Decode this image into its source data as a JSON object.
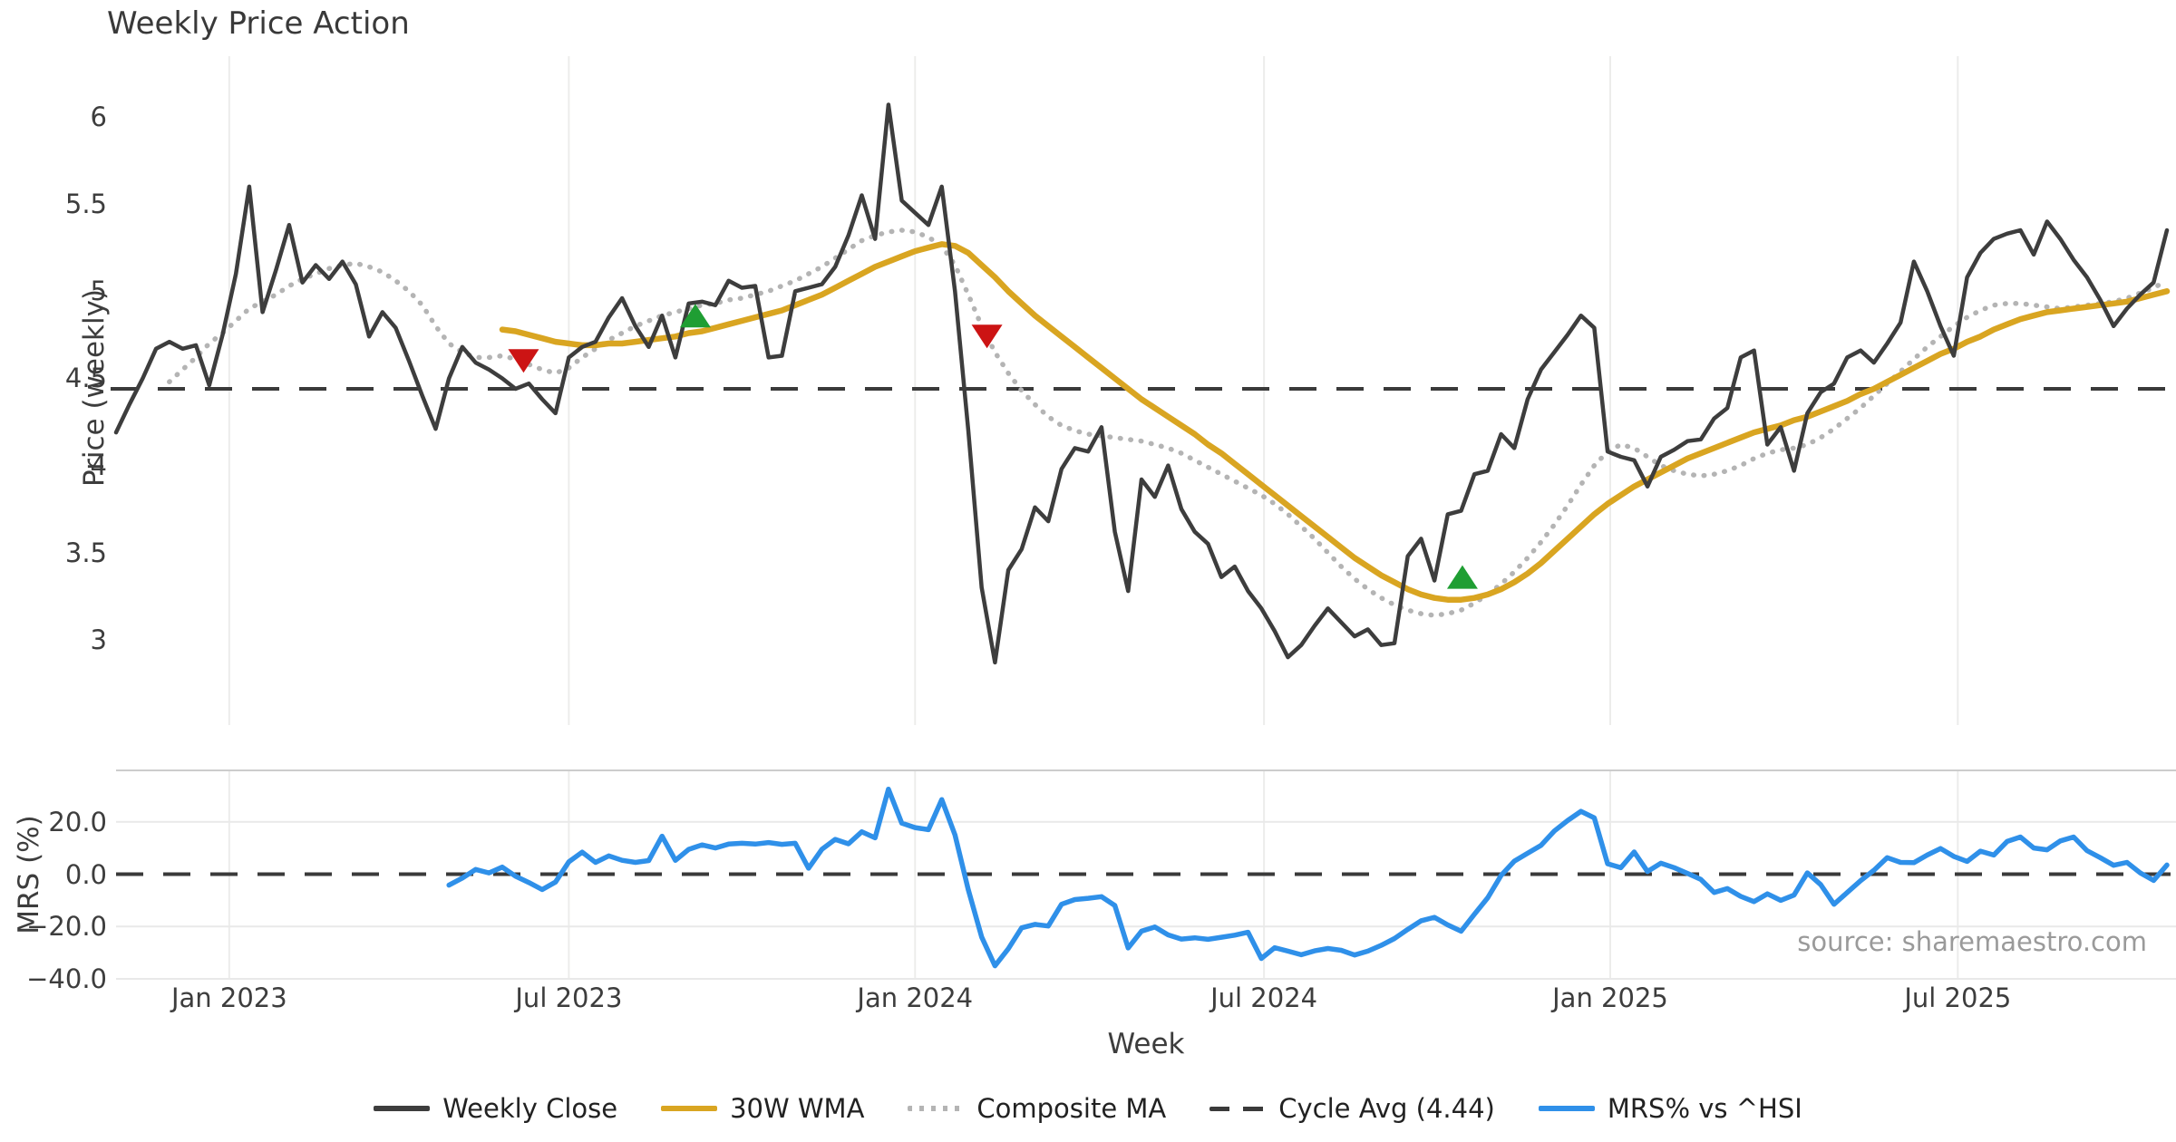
{
  "title": "Weekly Price Action",
  "source_text": "source: sharemaestro.com",
  "axes": {
    "price_axis_label": "Price (weekly)",
    "mrs_axis_label": "MRS (%)",
    "x_axis_label": "Week",
    "price_ticks": [
      {
        "label": "6",
        "value": 6
      },
      {
        "label": "5.5",
        "value": 5.5
      },
      {
        "label": "5",
        "value": 5
      },
      {
        "label": "4.5",
        "value": 4.5
      },
      {
        "label": "4",
        "value": 4
      },
      {
        "label": "3.5",
        "value": 3.5
      },
      {
        "label": "3",
        "value": 3
      }
    ],
    "mrs_ticks": [
      {
        "label": "20.0",
        "value": 20
      },
      {
        "label": "0.0",
        "value": 0
      },
      {
        "label": "−20.0",
        "value": -20
      },
      {
        "label": "−40.0",
        "value": -40
      }
    ],
    "x_ticks": [
      {
        "label": "Jan 2023",
        "week": 8.5
      },
      {
        "label": "Jul 2023",
        "week": 34.0
      },
      {
        "label": "Jan 2024",
        "week": 60.0
      },
      {
        "label": "Jul 2024",
        "week": 86.2
      },
      {
        "label": "Jan 2025",
        "week": 112.2
      },
      {
        "label": "Jul 2025",
        "week": 138.3
      }
    ]
  },
  "legend": [
    {
      "label": "Weekly Close",
      "style": "solid",
      "color": "#3d3d3d"
    },
    {
      "label": "30W WMA",
      "style": "solid",
      "color": "#d9a521"
    },
    {
      "label": "Composite MA",
      "style": "dotted",
      "color": "#b4b4b4"
    },
    {
      "label": "Cycle Avg (4.44)",
      "style": "dashed",
      "color": "#3a3a3a"
    },
    {
      "label": "MRS% vs ^HSI",
      "style": "solid",
      "color": "#2f90e9"
    }
  ],
  "colors": {
    "close": "#3d3d3d",
    "wma30": "#d9a521",
    "composite": "#b4b4b4",
    "cycle": "#3a3a3a",
    "mrs": "#2f90e9",
    "buy": "#1f9e33",
    "sell": "#cc1414",
    "grid": "#ececeb",
    "border": "#cccccc"
  },
  "chart_data": {
    "type": "line",
    "x_unit": "week_index",
    "n_weeks": 155,
    "panels": [
      {
        "name": "price",
        "ylabel": "Price (weekly)",
        "ylim": [
          2.5,
          6.35
        ],
        "grid": "vertical"
      },
      {
        "name": "mrs",
        "ylabel": "MRS (%)",
        "ylim": [
          -40,
          40
        ],
        "grid": "horizontal"
      }
    ],
    "cycle_avg": 4.44,
    "series": {
      "weekly_close": [
        4.19,
        4.35,
        4.5,
        4.67,
        4.71,
        4.67,
        4.69,
        4.46,
        4.75,
        5.1,
        5.6,
        4.88,
        5.12,
        5.38,
        5.05,
        5.15,
        5.07,
        5.17,
        5.04,
        4.74,
        4.88,
        4.79,
        4.6,
        4.4,
        4.21,
        4.5,
        4.68,
        4.59,
        4.55,
        4.5,
        4.44,
        4.47,
        4.38,
        4.3,
        4.62,
        4.68,
        4.71,
        4.85,
        4.96,
        4.8,
        4.68,
        4.86,
        4.62,
        4.93,
        4.94,
        4.92,
        5.06,
        5.02,
        5.03,
        4.62,
        4.63,
        5.0,
        5.02,
        5.04,
        5.14,
        5.32,
        5.55,
        5.3,
        6.07,
        5.52,
        5.45,
        5.38,
        5.6,
        5.0,
        4.2,
        3.3,
        2.87,
        3.4,
        3.52,
        3.76,
        3.68,
        3.98,
        4.1,
        4.08,
        4.22,
        3.62,
        3.28,
        3.92,
        3.82,
        4.0,
        3.75,
        3.62,
        3.55,
        3.36,
        3.42,
        3.28,
        3.18,
        3.05,
        2.9,
        2.97,
        3.08,
        3.18,
        3.1,
        3.02,
        3.06,
        2.97,
        2.98,
        3.48,
        3.58,
        3.34,
        3.72,
        3.74,
        3.95,
        3.97,
        4.18,
        4.1,
        4.38,
        4.55,
        4.65,
        4.75,
        4.86,
        4.79,
        4.08,
        4.05,
        4.03,
        3.88,
        4.05,
        4.09,
        4.14,
        4.15,
        4.27,
        4.33,
        4.62,
        4.66,
        4.12,
        4.22,
        3.97,
        4.3,
        4.42,
        4.47,
        4.62,
        4.66,
        4.59,
        4.7,
        4.82,
        5.17,
        5.0,
        4.8,
        4.63,
        5.08,
        5.22,
        5.3,
        5.33,
        5.35,
        5.21,
        5.4,
        5.3,
        5.18,
        5.08,
        4.95,
        4.8,
        4.9,
        4.98,
        5.05,
        5.35
      ],
      "wma_30w": [
        null,
        null,
        null,
        null,
        null,
        null,
        null,
        null,
        null,
        null,
        null,
        null,
        null,
        null,
        null,
        null,
        null,
        null,
        null,
        null,
        null,
        null,
        null,
        null,
        null,
        null,
        null,
        null,
        null,
        4.78,
        4.77,
        4.75,
        4.73,
        4.71,
        4.7,
        4.69,
        4.69,
        4.7,
        4.7,
        4.71,
        4.72,
        4.73,
        4.74,
        4.76,
        4.77,
        4.79,
        4.81,
        4.83,
        4.85,
        4.87,
        4.89,
        4.92,
        4.95,
        4.98,
        5.02,
        5.06,
        5.1,
        5.14,
        5.17,
        5.2,
        5.23,
        5.25,
        5.27,
        5.26,
        5.22,
        5.15,
        5.08,
        5.0,
        4.93,
        4.86,
        4.8,
        4.74,
        4.68,
        4.62,
        4.56,
        4.5,
        4.44,
        4.38,
        4.33,
        4.28,
        4.23,
        4.18,
        4.12,
        4.07,
        4.01,
        3.95,
        3.89,
        3.83,
        3.77,
        3.71,
        3.65,
        3.59,
        3.53,
        3.47,
        3.42,
        3.37,
        3.33,
        3.29,
        3.26,
        3.24,
        3.23,
        3.23,
        3.24,
        3.26,
        3.29,
        3.33,
        3.38,
        3.44,
        3.51,
        3.58,
        3.65,
        3.72,
        3.78,
        3.83,
        3.88,
        3.92,
        3.96,
        4.0,
        4.04,
        4.07,
        4.1,
        4.13,
        4.16,
        4.19,
        4.21,
        4.23,
        4.26,
        4.28,
        4.31,
        4.34,
        4.37,
        4.41,
        4.44,
        4.48,
        4.52,
        4.56,
        4.6,
        4.64,
        4.67,
        4.71,
        4.74,
        4.78,
        4.81,
        4.84,
        4.86,
        4.88,
        4.89,
        4.9,
        4.91,
        4.92,
        4.93,
        4.94,
        4.96,
        4.98,
        5.0
      ],
      "composite_ma": [
        null,
        null,
        null,
        null,
        4.48,
        4.55,
        4.62,
        4.7,
        4.76,
        4.83,
        4.9,
        4.94,
        4.98,
        5.03,
        5.07,
        5.1,
        5.13,
        5.15,
        5.16,
        5.14,
        5.11,
        5.06,
        5.0,
        4.92,
        4.8,
        4.7,
        4.65,
        4.62,
        4.62,
        4.63,
        4.61,
        4.58,
        4.55,
        4.53,
        4.56,
        4.62,
        4.67,
        4.72,
        4.76,
        4.8,
        4.83,
        4.86,
        4.88,
        4.9,
        4.92,
        4.93,
        4.95,
        4.96,
        4.98,
        5.0,
        5.03,
        5.06,
        5.1,
        5.14,
        5.19,
        5.24,
        5.29,
        5.32,
        5.34,
        5.35,
        5.34,
        5.31,
        5.26,
        5.15,
        4.98,
        4.8,
        4.65,
        4.53,
        4.43,
        4.35,
        4.28,
        4.23,
        4.2,
        4.18,
        4.17,
        4.16,
        4.15,
        4.14,
        4.12,
        4.1,
        4.07,
        4.03,
        3.99,
        3.95,
        3.91,
        3.87,
        3.83,
        3.78,
        3.72,
        3.65,
        3.58,
        3.5,
        3.42,
        3.35,
        3.29,
        3.24,
        3.2,
        3.17,
        3.15,
        3.14,
        3.15,
        3.17,
        3.21,
        3.26,
        3.32,
        3.39,
        3.47,
        3.56,
        3.66,
        3.77,
        3.89,
        4.0,
        4.08,
        4.12,
        4.1,
        4.05,
        4.0,
        3.97,
        3.95,
        3.94,
        3.95,
        3.97,
        4.0,
        4.04,
        4.07,
        4.09,
        4.1,
        4.12,
        4.16,
        4.21,
        4.27,
        4.33,
        4.4,
        4.47,
        4.54,
        4.61,
        4.68,
        4.74,
        4.8,
        4.85,
        4.89,
        4.92,
        4.93,
        4.93,
        4.92,
        4.91,
        4.9,
        4.91,
        4.92,
        4.93,
        4.94,
        4.96,
        4.99,
        5.02,
        5.06
      ],
      "mrs_pct": [
        null,
        null,
        null,
        null,
        null,
        null,
        null,
        null,
        null,
        null,
        null,
        null,
        null,
        null,
        null,
        null,
        null,
        null,
        null,
        null,
        null,
        null,
        null,
        null,
        null,
        -4.2,
        -1.5,
        1.8,
        0.5,
        2.7,
        -0.8,
        -3.2,
        -5.9,
        -3.0,
        4.7,
        8.4,
        4.5,
        7.0,
        5.3,
        4.5,
        5.2,
        14.5,
        5.3,
        9.5,
        11.2,
        10.0,
        11.5,
        11.8,
        11.5,
        12.1,
        11.4,
        11.8,
        2.3,
        9.5,
        13.3,
        11.6,
        16.2,
        13.9,
        32.5,
        19.5,
        17.8,
        17.0,
        28.5,
        15.0,
        -6.0,
        -24.0,
        -35.0,
        -28.5,
        -20.5,
        -19.2,
        -19.8,
        -11.5,
        -9.7,
        -9.2,
        -8.6,
        -12.0,
        -28.2,
        -21.8,
        -20.2,
        -23.2,
        -24.8,
        -24.3,
        -24.9,
        -24.1,
        -23.3,
        -22.2,
        -32.2,
        -28.1,
        -29.4,
        -30.8,
        -29.3,
        -28.4,
        -29.1,
        -30.9,
        -29.4,
        -27.2,
        -24.6,
        -21.1,
        -17.8,
        -16.5,
        -19.4,
        -21.8,
        -15.3,
        -9.0,
        -0.5,
        5.0,
        8.0,
        11.0,
        16.5,
        20.5,
        24.0,
        21.5,
        4.0,
        2.5,
        8.5,
        1.0,
        4.2,
        2.5,
        0.3,
        -2.0,
        -7.0,
        -5.5,
        -8.5,
        -10.5,
        -7.5,
        -10.0,
        -8.0,
        0.5,
        -4.0,
        -11.5,
        -7.0,
        -2.5,
        1.5,
        6.3,
        4.5,
        4.4,
        7.3,
        9.8,
        6.8,
        4.9,
        8.8,
        7.3,
        12.5,
        14.2,
        10.0,
        9.3,
        12.7,
        14.2,
        9.0,
        6.3,
        3.4,
        4.5,
        0.5,
        -2.4,
        3.5
      ]
    },
    "markers": [
      {
        "signal": "sell",
        "week": 30.6,
        "price": 4.6
      },
      {
        "signal": "buy",
        "week": 43.5,
        "price": 4.86
      },
      {
        "signal": "sell",
        "week": 65.4,
        "price": 4.74
      },
      {
        "signal": "buy",
        "week": 101.1,
        "price": 3.36
      }
    ]
  }
}
